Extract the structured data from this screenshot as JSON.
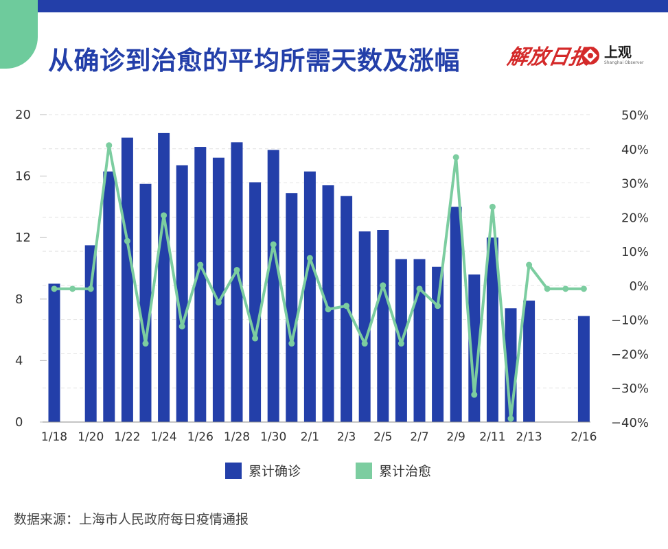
{
  "title": "从确诊到治愈的平均所需天数及涨幅",
  "logos": {
    "jiefang": "解放日报",
    "shangguan": "上观",
    "shangguan_en": "Shanghai Observer"
  },
  "source": "数据来源：上海市人民政府每日疫情通报",
  "colors": {
    "bar": "#233fa9",
    "line": "#7ccda0",
    "accent_tab": "#6ecb9c"
  },
  "chart_data": {
    "type": "bar",
    "dates": [
      "1/18",
      "1/19",
      "1/20",
      "1/21",
      "1/22",
      "1/23",
      "1/24",
      "1/25",
      "1/26",
      "1/27",
      "1/28",
      "1/29",
      "1/30",
      "1/31",
      "2/1",
      "2/2",
      "2/3",
      "2/4",
      "2/5",
      "2/6",
      "2/7",
      "2/8",
      "2/9",
      "2/10",
      "2/11",
      "2/12",
      "2/13",
      "2/14",
      "2/15",
      "2/16"
    ],
    "x_tick_labels": [
      "1/18",
      "",
      "1/20",
      "",
      "1/22",
      "",
      "1/24",
      "",
      "1/26",
      "",
      "1/28",
      "",
      "1/30",
      "",
      "2/1",
      "",
      "2/3",
      "",
      "2/5",
      "",
      "2/7",
      "",
      "2/9",
      "",
      "2/11",
      "",
      "2/13",
      "",
      "",
      "2/16"
    ],
    "y_left": {
      "min": 0,
      "max": 20,
      "ticks": [
        0,
        4,
        8,
        12,
        16,
        20
      ]
    },
    "y_right": {
      "min": -40,
      "max": 50,
      "ticks": [
        "−40%",
        "−30%",
        "−20%",
        "−10%",
        "0%",
        "10%",
        "20%",
        "30%",
        "40%",
        "50%"
      ],
      "tick_values": [
        -40,
        -30,
        -20,
        -10,
        0,
        10,
        20,
        30,
        40,
        50
      ]
    },
    "series": [
      {
        "name": "累计确诊",
        "type": "bar",
        "axis": "left",
        "values": [
          9.0,
          null,
          11.5,
          16.3,
          18.5,
          15.5,
          18.8,
          16.7,
          17.9,
          17.2,
          18.2,
          15.6,
          17.7,
          14.9,
          16.3,
          15.4,
          14.7,
          12.4,
          12.5,
          10.6,
          10.6,
          10.1,
          14.0,
          9.6,
          12.0,
          7.4,
          7.9,
          null,
          null,
          6.9
        ]
      },
      {
        "name": "累计治愈",
        "type": "line",
        "axis": "right",
        "values": [
          -1,
          -1,
          -1,
          41,
          13,
          -17,
          20.5,
          -12,
          6,
          -5,
          4.5,
          -15.5,
          12,
          -17,
          8,
          -7,
          -6,
          -17,
          0,
          -17,
          -1,
          -6,
          37.5,
          -32,
          23,
          -39,
          6,
          -1,
          -1,
          -1
        ]
      }
    ],
    "legend_placement": "bottom-center",
    "grid": true
  }
}
